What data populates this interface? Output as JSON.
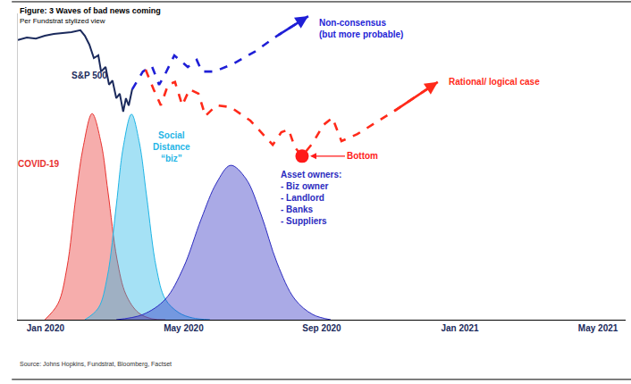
{
  "chart_data": {
    "type": "line",
    "title": "Figure: 3 Waves of bad news coming",
    "subtitle": "Per Fundstrat stylized view",
    "source": "Source: Johns Hopkins, Fundstrat, Bloomberg, Factset",
    "xlim": [
      -0.8,
      16.8
    ],
    "xticks": [
      {
        "value": 0,
        "label": "Jan 2020"
      },
      {
        "value": 4,
        "label": "May 2020"
      },
      {
        "value": 8,
        "label": "Sep 2020"
      },
      {
        "value": 12,
        "label": "Jan 2021"
      },
      {
        "value": 16,
        "label": "May 2021"
      }
    ],
    "ylim": [
      0,
      100
    ],
    "tick_labels": "x",
    "grid": false,
    "series": [
      {
        "name": "COVID-19",
        "type": "area",
        "color": "#e8322f",
        "line_style": "solid",
        "x": [
          -0.02,
          0.36,
          0.62,
          0.88,
          1.09,
          1.35,
          1.61,
          1.81,
          2.07,
          2.33,
          2.69,
          3.08,
          3.47
        ],
        "values": [
          0,
          5.2,
          16.9,
          40.2,
          56.3,
          67.3,
          57.7,
          41.7,
          19.8,
          8.2,
          2.3,
          0.3,
          0
        ]
      },
      {
        "name": "Social\nDistance\n“biz”",
        "type": "area",
        "color": "#1fb5e6",
        "line_style": "solid",
        "x": [
          1.14,
          1.53,
          1.79,
          2.05,
          2.25,
          2.49,
          2.72,
          2.93,
          3.21,
          3.47,
          3.86,
          4.25,
          4.76
        ],
        "values": [
          0,
          3.8,
          14.0,
          37.3,
          56.3,
          67.1,
          57.7,
          40.2,
          16.9,
          6.7,
          2.3,
          0.6,
          0
        ]
      },
      {
        "name": "Asset owners:",
        "type": "area",
        "color": "#2b2bc0",
        "line_style": "solid",
        "items": [
          "- Biz owner",
          "- Landlord",
          "- Banks",
          "- Suppliers"
        ],
        "x": [
          2.05,
          2.82,
          3.47,
          3.99,
          4.51,
          4.95,
          5.36,
          5.8,
          6.24,
          6.71,
          7.22,
          7.74,
          8.26
        ],
        "values": [
          0,
          1.7,
          6.7,
          16.9,
          32.9,
          44.6,
          50.4,
          46.1,
          34.4,
          18.4,
          6.7,
          1.7,
          0
        ]
      },
      {
        "name": "S&P 500",
        "type": "line",
        "color": "#1b2a5c",
        "line_style": "solid",
        "x": [
          -0.8,
          -0.54,
          -0.28,
          -0.02,
          0.24,
          0.49,
          0.75,
          1.01,
          1.14,
          1.27,
          1.4,
          1.53,
          1.61,
          1.74,
          1.84,
          1.94,
          2.05,
          2.15,
          2.25,
          2.33,
          2.41,
          2.51
        ],
        "values": [
          91.3,
          92.1,
          91.8,
          92.7,
          93.3,
          93.6,
          93.9,
          94.5,
          92.7,
          89.8,
          85.4,
          86.3,
          81.0,
          82.5,
          76.7,
          78.1,
          72.3,
          73.8,
          67.9,
          72.3,
          69.9,
          75.2
        ]
      },
      {
        "name": "Non-consensus\n(but more probable)",
        "type": "line",
        "color": "#1f1fd6",
        "line_style": "dash",
        "marker": "arrow",
        "x": [
          2.51,
          2.82,
          3.08,
          3.29,
          3.44,
          3.73,
          4.12,
          4.38,
          4.53,
          4.89,
          5.41,
          6.06,
          6.71,
          7.61
        ],
        "values": [
          75.2,
          81.0,
          82.8,
          76.7,
          79.6,
          86.3,
          82.5,
          84.8,
          81.0,
          81.0,
          83.4,
          87.5,
          92.7,
          99.1
        ]
      },
      {
        "name": "Rational/ logical case",
        "type": "line",
        "color": "#ff2a1a",
        "line_style": "dash",
        "marker": "arrow",
        "x": [
          2.9,
          3.13,
          3.34,
          3.55,
          3.75,
          3.96,
          4.17,
          4.43,
          4.63,
          4.95,
          5.36,
          5.93,
          6.58,
          6.83,
          7.04,
          7.22,
          7.43,
          7.74,
          8.05,
          8.31,
          8.57,
          9.03,
          10.07,
          11.36
        ],
        "values": [
          81.6,
          75.2,
          70.0,
          76.7,
          77.6,
          70.0,
          75.2,
          73.8,
          66.5,
          70.0,
          69.4,
          65.0,
          57.1,
          61.2,
          62.1,
          56.3,
          53.4,
          57.7,
          63.6,
          65.9,
          58.3,
          60.6,
          67.9,
          77.6
        ]
      }
    ],
    "points": [
      {
        "label": "Bottom",
        "x": 7.43,
        "y": 53.4,
        "color": "#ff1a1a",
        "marker": "circle"
      }
    ]
  }
}
